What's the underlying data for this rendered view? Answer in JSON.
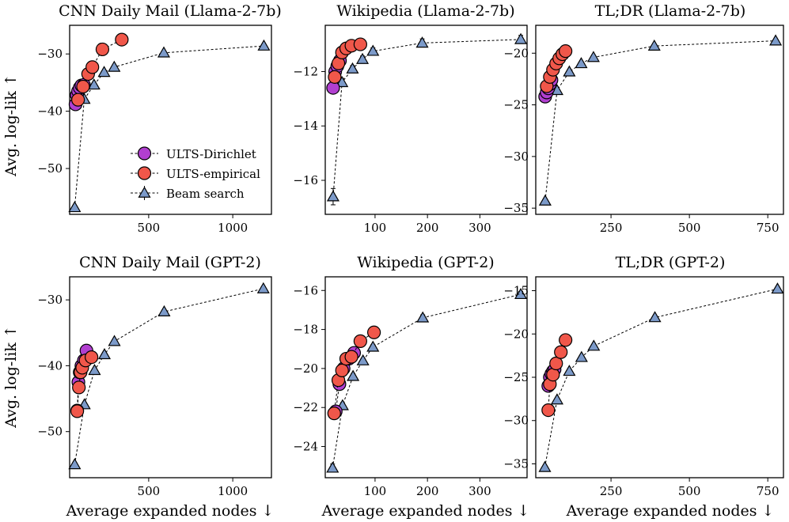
{
  "figure": {
    "xlabel": "Average expanded nodes ↓",
    "ylabel": "Avg. log-lik ↑"
  },
  "colors": {
    "dirichlet": "#b13fd0",
    "empirical": "#f0574a",
    "beam": "#7c9ac9",
    "edge": "#000000"
  },
  "legend": {
    "items": [
      "ULTS-Dirichlet",
      "ULTS-empirical",
      "Beam search"
    ],
    "location": "lower-right of top-left panel"
  },
  "chart_data": [
    {
      "type": "line",
      "title": "CNN Daily Mail (Llama-2-7b)",
      "xlabel": "",
      "ylabel": "Avg. log-lik ↑",
      "xlim": [
        30,
        1230
      ],
      "ylim": [
        -58,
        -25
      ],
      "xticks": [
        500,
        1000
      ],
      "xtick_labels": [
        "500",
        "1000"
      ],
      "yticks": [
        -50,
        -40,
        -30
      ],
      "ytick_labels": [
        "−50",
        "−40",
        "−30"
      ],
      "series": [
        {
          "name": "ULTS-Dirichlet",
          "marker": "circle",
          "x": [
            65,
            72,
            80,
            90,
            100,
            115
          ],
          "y": [
            -38.8,
            -37.2,
            -36.5,
            -35.9,
            -35.5,
            -35.4
          ]
        },
        {
          "name": "ULTS-empirical",
          "marker": "circle",
          "x": [
            80,
            110,
            140,
            165,
            225,
            340
          ],
          "y": [
            -38.0,
            -35.7,
            -33.5,
            -32.3,
            -29.2,
            -27.5
          ]
        },
        {
          "name": "Beam search",
          "marker": "triangle",
          "x": [
            60,
            117,
            175,
            235,
            295,
            590,
            1185
          ],
          "y": [
            -56.8,
            -37.9,
            -35.4,
            -33.2,
            -32.3,
            -29.8,
            -28.6
          ],
          "yerr": [
            0.3,
            0.3,
            0.3,
            0.3,
            0.3,
            0.3,
            0.3
          ]
        }
      ]
    },
    {
      "type": "line",
      "title": "Wikipedia (Llama-2-7b)",
      "xlabel": "",
      "ylabel": "",
      "xlim": [
        5,
        390
      ],
      "ylim": [
        -17.25,
        -10.3
      ],
      "xticks": [
        100,
        200,
        300
      ],
      "xtick_labels": [
        "100",
        "200",
        "300"
      ],
      "yticks": [
        -16,
        -14,
        -12
      ],
      "ytick_labels": [
        "−16",
        "−14",
        "−12"
      ],
      "series": [
        {
          "name": "ULTS-Dirichlet",
          "marker": "circle",
          "x": [
            20,
            24,
            28,
            33
          ],
          "y": [
            -12.6,
            -12.0,
            -11.8,
            -11.6
          ]
        },
        {
          "name": "ULTS-empirical",
          "marker": "circle",
          "x": [
            23,
            30,
            37,
            45,
            55,
            72
          ],
          "y": [
            -12.2,
            -11.7,
            -11.3,
            -11.15,
            -11.05,
            -11.0
          ]
        },
        {
          "name": "Beam search",
          "marker": "triangle",
          "x": [
            20,
            37,
            57,
            76,
            96,
            190,
            378
          ],
          "y": [
            -16.6,
            -12.4,
            -11.9,
            -11.55,
            -11.25,
            -10.95,
            -10.82
          ],
          "yerr": [
            0.3,
            0.15,
            0.12,
            0.12,
            0.12,
            0.15,
            0.15
          ]
        }
      ]
    },
    {
      "type": "line",
      "title": "TL;DR (Llama-2-7b)",
      "xlabel": "",
      "ylabel": "",
      "xlim": [
        10,
        800
      ],
      "ylim": [
        -35.6,
        -17.3
      ],
      "xticks": [
        250,
        500,
        750
      ],
      "xtick_labels": [
        "250",
        "500",
        "750"
      ],
      "yticks": [
        -35,
        -30,
        -25,
        -20
      ],
      "ytick_labels": [
        "−35",
        "−30",
        "−25",
        "−20"
      ],
      "series": [
        {
          "name": "ULTS-Dirichlet",
          "marker": "circle",
          "x": [
            40,
            45,
            50,
            55,
            60
          ],
          "y": [
            -24.2,
            -23.8,
            -23.4,
            -23.0,
            -22.6
          ]
        },
        {
          "name": "ULTS-empirical",
          "marker": "circle",
          "x": [
            45,
            55,
            65,
            75,
            85,
            95,
            105
          ],
          "y": [
            -23.2,
            -22.3,
            -21.6,
            -21.0,
            -20.5,
            -20.1,
            -19.8
          ]
        },
        {
          "name": "Beam search",
          "marker": "triangle",
          "x": [
            40,
            78,
            117,
            155,
            194,
            388,
            775
          ],
          "y": [
            -34.3,
            -23.6,
            -21.8,
            -21.0,
            -20.4,
            -19.3,
            -18.8
          ],
          "yerr": [
            0.15,
            0.15,
            0.15,
            0.15,
            0.15,
            0.15,
            0.15
          ]
        }
      ]
    },
    {
      "type": "line",
      "title": "CNN Daily Mail (GPT-2)",
      "xlabel": "Average expanded nodes ↓",
      "ylabel": "Avg. log-lik ↑",
      "xlim": [
        30,
        1230
      ],
      "ylim": [
        -57,
        -26.5
      ],
      "xticks": [
        500,
        1000
      ],
      "xtick_labels": [
        "500",
        "1000"
      ],
      "yticks": [
        -50,
        -40,
        -30
      ],
      "ytick_labels": [
        "−50",
        "−40",
        "−30"
      ],
      "series": [
        {
          "name": "ULTS-Dirichlet",
          "marker": "circle",
          "x": [
            75,
            82,
            90,
            100,
            115,
            130
          ],
          "y": [
            -46.8,
            -42.5,
            -41.0,
            -40.0,
            -39.2,
            -37.7
          ]
        },
        {
          "name": "ULTS-empirical",
          "marker": "circle",
          "x": [
            75,
            85,
            95,
            105,
            125,
            160
          ],
          "y": [
            -46.9,
            -43.3,
            -41.0,
            -40.3,
            -39.2,
            -38.7
          ]
        },
        {
          "name": "Beam search",
          "marker": "triangle",
          "x": [
            60,
            118,
            178,
            237,
            296,
            592,
            1182
          ],
          "y": [
            -55.0,
            -45.9,
            -40.7,
            -38.3,
            -36.3,
            -31.8,
            -28.3
          ],
          "yerr": [
            0.3,
            0.3,
            0.3,
            0.3,
            0.3,
            0.3,
            0.3
          ]
        }
      ]
    },
    {
      "type": "line",
      "title": "Wikipedia (GPT-2)",
      "xlabel": "Average expanded nodes ↓",
      "ylabel": "",
      "xlim": [
        5,
        390
      ],
      "ylim": [
        -25.6,
        -15.3
      ],
      "xticks": [
        100,
        200,
        300
      ],
      "xtick_labels": [
        "100",
        "200",
        "300"
      ],
      "yticks": [
        -24,
        -22,
        -20,
        -18,
        -16
      ],
      "ytick_labels": [
        "−24",
        "−22",
        "−20",
        "−18",
        "−16"
      ],
      "series": [
        {
          "name": "ULTS-Dirichlet",
          "marker": "circle",
          "x": [
            25,
            32,
            40,
            50,
            60
          ],
          "y": [
            -22.2,
            -20.8,
            -20.0,
            -19.5,
            -19.2
          ]
        },
        {
          "name": "ULTS-empirical",
          "marker": "circle",
          "x": [
            22,
            30,
            37,
            45,
            55,
            72,
            98
          ],
          "y": [
            -22.3,
            -20.6,
            -20.1,
            -19.5,
            -19.4,
            -18.6,
            -18.15
          ]
        },
        {
          "name": "Beam search",
          "marker": "triangle",
          "x": [
            19,
            38,
            58,
            77,
            96,
            191,
            378
          ],
          "y": [
            -25.1,
            -21.9,
            -20.4,
            -19.6,
            -18.9,
            -17.4,
            -16.2
          ],
          "yerr": [
            0.2,
            0.15,
            0.12,
            0.12,
            0.12,
            0.15,
            0.15
          ]
        }
      ]
    },
    {
      "type": "line",
      "title": "TL;DR (GPT-2)",
      "xlabel": "Average expanded nodes ↓",
      "ylabel": "",
      "xlim": [
        10,
        800
      ],
      "ylim": [
        -36.6,
        -13.4
      ],
      "xticks": [
        250,
        500,
        750
      ],
      "xtick_labels": [
        "250",
        "500",
        "750"
      ],
      "yticks": [
        -35,
        -30,
        -25,
        -20,
        -15
      ],
      "ytick_labels": [
        "−35",
        "−30",
        "−25",
        "−20",
        "−15"
      ],
      "series": [
        {
          "name": "ULTS-Dirichlet",
          "marker": "circle",
          "x": [
            50,
            55,
            60,
            65,
            70
          ],
          "y": [
            -26.0,
            -25.0,
            -24.6,
            -24.3,
            -24.1
          ]
        },
        {
          "name": "ULTS-empirical",
          "marker": "circle",
          "x": [
            50,
            55,
            65,
            75,
            90,
            105
          ],
          "y": [
            -28.8,
            -25.8,
            -24.7,
            -23.4,
            -22.1,
            -20.7
          ]
        },
        {
          "name": "Beam search",
          "marker": "triangle",
          "x": [
            39,
            78,
            117,
            156,
            195,
            390,
            781
          ],
          "y": [
            -35.4,
            -27.6,
            -24.3,
            -22.7,
            -21.4,
            -18.1,
            -14.8
          ],
          "yerr": [
            0.15,
            0.15,
            0.15,
            0.15,
            0.15,
            0.15,
            0.15
          ]
        }
      ]
    }
  ]
}
